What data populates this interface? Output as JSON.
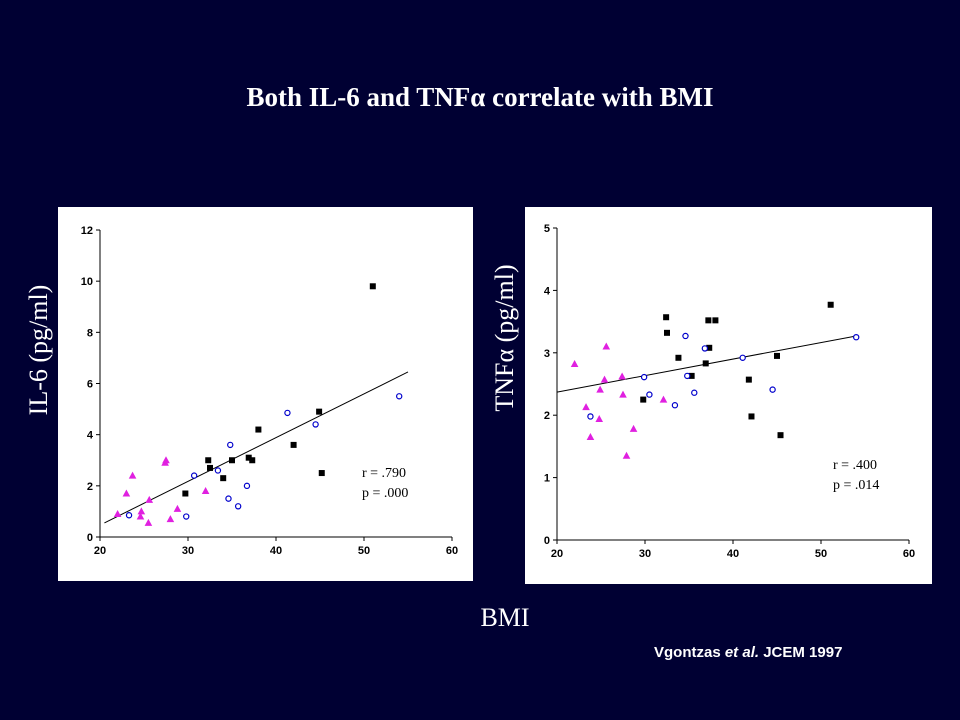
{
  "slide": {
    "title": "Both IL-6 and TNFα correlate with BMI",
    "xlabel": "BMI",
    "citation": {
      "author": "Vgontzas ",
      "etal": "et al.",
      "journal": " JCEM 1997"
    }
  },
  "chart_data": [
    {
      "type": "scatter",
      "ylabel": "IL-6 (pg/ml)",
      "xlim": [
        20,
        60
      ],
      "ylim": [
        0,
        12
      ],
      "xticks": [
        20,
        30,
        40,
        50,
        60
      ],
      "yticks": [
        0,
        2,
        4,
        6,
        8,
        10,
        12
      ],
      "grid": false,
      "colors": {
        "squares": "#000000",
        "circles": "#0000cc",
        "triangles": "#e020e0",
        "line": "#000000"
      },
      "annotations": {
        "r": "r = .790",
        "p": "p = .000"
      },
      "trendline": {
        "x": [
          20.5,
          55
        ],
        "y": [
          0.55,
          6.45
        ]
      },
      "series": [
        {
          "marker": "square",
          "points": [
            [
              29.7,
              1.7
            ],
            [
              32.3,
              3.0
            ],
            [
              32.5,
              2.7
            ],
            [
              34.0,
              2.3
            ],
            [
              35.0,
              3.0
            ],
            [
              36.9,
              3.1
            ],
            [
              37.3,
              3.0
            ],
            [
              38.0,
              4.2
            ],
            [
              42.0,
              3.6
            ],
            [
              44.9,
              4.9
            ],
            [
              45.2,
              2.5
            ],
            [
              51.0,
              9.8
            ]
          ]
        },
        {
          "marker": "circle",
          "points": [
            [
              23.3,
              0.85
            ],
            [
              29.8,
              0.8
            ],
            [
              30.7,
              2.4
            ],
            [
              33.4,
              2.6
            ],
            [
              34.6,
              1.5
            ],
            [
              34.8,
              3.6
            ],
            [
              35.7,
              1.2
            ],
            [
              36.7,
              2.0
            ],
            [
              41.3,
              4.85
            ],
            [
              44.5,
              4.4
            ],
            [
              54.0,
              5.5
            ]
          ]
        },
        {
          "marker": "triangle",
          "points": [
            [
              22.0,
              0.9
            ],
            [
              23.0,
              1.7
            ],
            [
              23.7,
              2.4
            ],
            [
              24.6,
              0.8
            ],
            [
              24.7,
              1.0
            ],
            [
              25.5,
              0.55
            ],
            [
              25.6,
              1.45
            ],
            [
              27.4,
              2.9
            ],
            [
              27.5,
              3.0
            ],
            [
              28.0,
              0.7
            ],
            [
              28.8,
              1.1
            ],
            [
              32.0,
              1.8
            ]
          ]
        }
      ]
    },
    {
      "type": "scatter",
      "ylabel": "TNFα (pg/ml)",
      "xlim": [
        20,
        60
      ],
      "ylim": [
        0,
        5
      ],
      "xticks": [
        20,
        30,
        40,
        50,
        60
      ],
      "yticks": [
        0,
        1,
        2,
        3,
        4,
        5
      ],
      "grid": false,
      "colors": {
        "squares": "#000000",
        "circles": "#0000cc",
        "triangles": "#e020e0",
        "line": "#000000"
      },
      "annotations": {
        "r": "r = .400",
        "p": "p = .014"
      },
      "trendline": {
        "x": [
          20,
          54
        ],
        "y": [
          2.37,
          3.27
        ]
      },
      "series": [
        {
          "marker": "square",
          "points": [
            [
              29.8,
              2.25
            ],
            [
              32.4,
              3.57
            ],
            [
              32.5,
              3.32
            ],
            [
              33.8,
              2.92
            ],
            [
              35.3,
              2.63
            ],
            [
              36.9,
              2.83
            ],
            [
              37.2,
              3.52
            ],
            [
              37.3,
              3.08
            ],
            [
              38.0,
              3.52
            ],
            [
              41.8,
              2.57
            ],
            [
              42.1,
              1.98
            ],
            [
              45.0,
              2.95
            ],
            [
              45.4,
              1.68
            ],
            [
              51.1,
              3.77
            ]
          ]
        },
        {
          "marker": "circle",
          "points": [
            [
              23.8,
              1.98
            ],
            [
              29.9,
              2.61
            ],
            [
              30.5,
              2.33
            ],
            [
              33.4,
              2.16
            ],
            [
              34.6,
              3.27
            ],
            [
              34.8,
              2.63
            ],
            [
              35.6,
              2.36
            ],
            [
              36.8,
              3.07
            ],
            [
              41.1,
              2.92
            ],
            [
              44.5,
              2.41
            ],
            [
              54.0,
              3.25
            ]
          ]
        },
        {
          "marker": "triangle",
          "points": [
            [
              22.0,
              2.82
            ],
            [
              23.3,
              2.13
            ],
            [
              23.8,
              1.65
            ],
            [
              24.8,
              1.94
            ],
            [
              24.9,
              2.41
            ],
            [
              25.4,
              2.57
            ],
            [
              25.6,
              3.1
            ],
            [
              27.4,
              2.62
            ],
            [
              27.5,
              2.33
            ],
            [
              27.9,
              1.35
            ],
            [
              28.7,
              1.78
            ],
            [
              32.1,
              2.25
            ]
          ]
        }
      ]
    }
  ]
}
